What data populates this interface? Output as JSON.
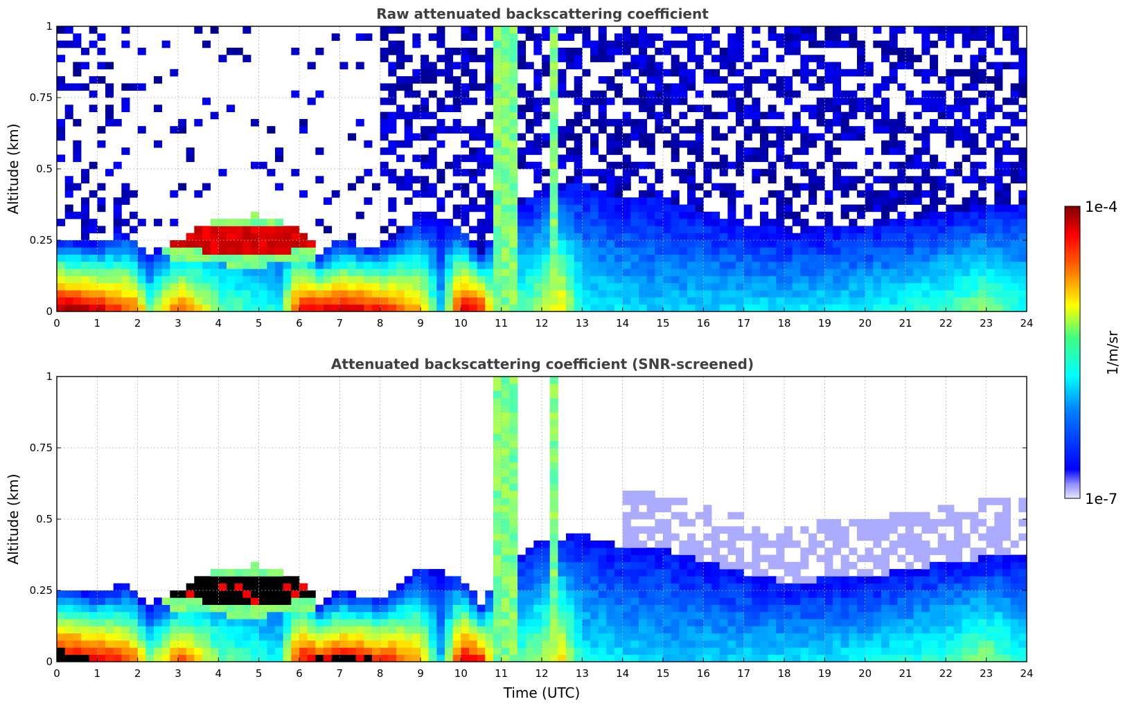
{
  "chart_data": [
    {
      "type": "heatmap",
      "title": "Raw attenuated backscattering coefficient",
      "xlabel": "",
      "ylabel": "Altitude (km)",
      "xlim": [
        0,
        24
      ],
      "ylim": [
        0,
        1
      ],
      "xticks": [
        "0",
        "1",
        "2",
        "3",
        "4",
        "5",
        "6",
        "7",
        "8",
        "9",
        "10",
        "11",
        "12",
        "13",
        "14",
        "15",
        "16",
        "17",
        "18",
        "19",
        "20",
        "21",
        "22",
        "23",
        "24"
      ],
      "yticks": [
        "0",
        "0.25",
        "0.5",
        "0.75",
        "1"
      ],
      "grid": true,
      "colorscale": "jet, log10 from 1e-7 to 1e-4",
      "screened": false
    },
    {
      "type": "heatmap",
      "title": "Attenuated backscattering coefficient (SNR-screened)",
      "xlabel": "Time (UTC)",
      "ylabel": "Altitude (km)",
      "xlim": [
        0,
        24
      ],
      "ylim": [
        0,
        1
      ],
      "xticks": [
        "0",
        "1",
        "2",
        "3",
        "4",
        "5",
        "6",
        "7",
        "8",
        "9",
        "10",
        "11",
        "12",
        "13",
        "14",
        "15",
        "16",
        "17",
        "18",
        "19",
        "20",
        "21",
        "22",
        "23",
        "24"
      ],
      "yticks": [
        "0",
        "0.25",
        "0.5",
        "0.75",
        "1"
      ],
      "grid": true,
      "colorscale": "jet, log10 from 1e-7 to 1e-4",
      "screened": true,
      "saturated_color": "#000000"
    }
  ],
  "colorbar": {
    "label": "1/m/sr",
    "max_label": "1e-4",
    "min_label": "1e-7"
  }
}
